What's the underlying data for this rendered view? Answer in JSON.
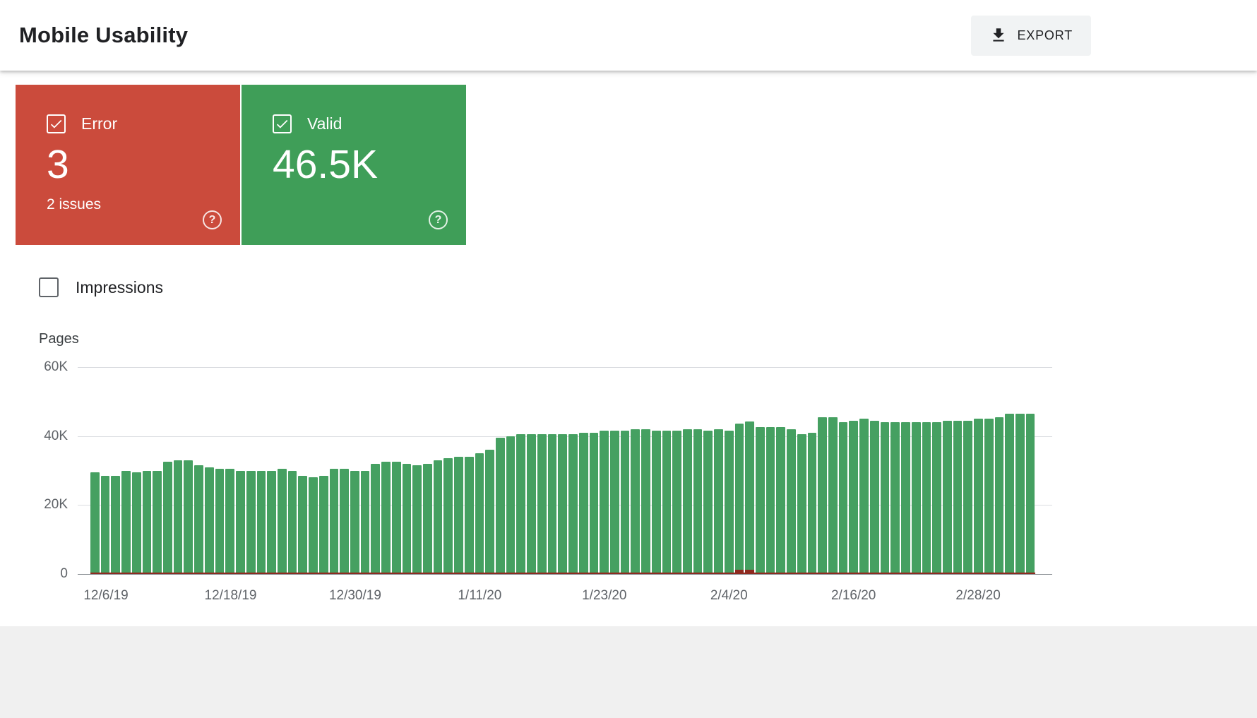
{
  "header": {
    "title": "Mobile Usability",
    "export_label": "EXPORT"
  },
  "summary_cards": [
    {
      "id": "error",
      "label": "Error",
      "value": "3",
      "sub_label": "2 issues",
      "checked": true,
      "color": "#cb4b3c"
    },
    {
      "id": "valid",
      "label": "Valid",
      "value": "46.5K",
      "sub_label": "",
      "checked": true,
      "color": "#3f9e58"
    }
  ],
  "impressions_toggle": {
    "label": "Impressions",
    "checked": false
  },
  "icons": {
    "help_glyph": "?"
  },
  "chart_data": {
    "type": "bar",
    "title": "",
    "ylabel": "Pages",
    "xlabel": "",
    "ylim": [
      0,
      60000
    ],
    "y_tick_labels": [
      "60K",
      "40K",
      "20K",
      "0"
    ],
    "grid": true,
    "legend_position": "none",
    "x_ticks": [
      {
        "index": 1,
        "label": "12/6/19"
      },
      {
        "index": 13,
        "label": "12/18/19"
      },
      {
        "index": 25,
        "label": "12/30/19"
      },
      {
        "index": 37,
        "label": "1/11/20"
      },
      {
        "index": 49,
        "label": "1/23/20"
      },
      {
        "index": 61,
        "label": "2/4/20"
      },
      {
        "index": 73,
        "label": "2/16/20"
      },
      {
        "index": 85,
        "label": "2/28/20"
      }
    ],
    "series": [
      {
        "name": "Valid",
        "color": "#45a061",
        "values": [
          29500,
          28500,
          28500,
          30000,
          29500,
          30000,
          30000,
          32500,
          33000,
          33000,
          31500,
          31000,
          30500,
          30500,
          30000,
          30000,
          30000,
          30000,
          30500,
          30000,
          28500,
          28000,
          28500,
          30500,
          30500,
          30000,
          30000,
          32000,
          32500,
          32500,
          32000,
          31500,
          32000,
          33000,
          33500,
          34000,
          34000,
          35000,
          36000,
          39500,
          40000,
          40500,
          40500,
          40500,
          40500,
          40500,
          40500,
          41000,
          41000,
          41500,
          41500,
          41500,
          42000,
          42000,
          41500,
          41500,
          41500,
          42000,
          42000,
          41500,
          42000,
          41500,
          42500,
          43000,
          42500,
          42500,
          42500,
          42000,
          40500,
          41000,
          45500,
          45500,
          44000,
          44500,
          45000,
          44500,
          44000,
          44000,
          44000,
          44000,
          44000,
          44000,
          44500,
          44500,
          44500,
          45000,
          45000,
          45500,
          46500,
          46500,
          46500
        ]
      },
      {
        "name": "Error",
        "color": "#8f2a20",
        "values": [
          3,
          3,
          3,
          3,
          3,
          3,
          3,
          3,
          3,
          3,
          3,
          3,
          3,
          3,
          3,
          3,
          3,
          3,
          3,
          3,
          3,
          3,
          3,
          3,
          3,
          3,
          3,
          3,
          3,
          3,
          3,
          3,
          3,
          3,
          3,
          3,
          3,
          3,
          3,
          3,
          3,
          3,
          3,
          3,
          3,
          3,
          3,
          3,
          3,
          3,
          3,
          3,
          3,
          3,
          3,
          3,
          3,
          3,
          3,
          3,
          3,
          3,
          1200,
          1200,
          3,
          3,
          3,
          3,
          3,
          3,
          3,
          3,
          3,
          3,
          3,
          3,
          3,
          3,
          3,
          3,
          3,
          3,
          3,
          3,
          3,
          3,
          3,
          3,
          3,
          3,
          3
        ]
      }
    ]
  }
}
